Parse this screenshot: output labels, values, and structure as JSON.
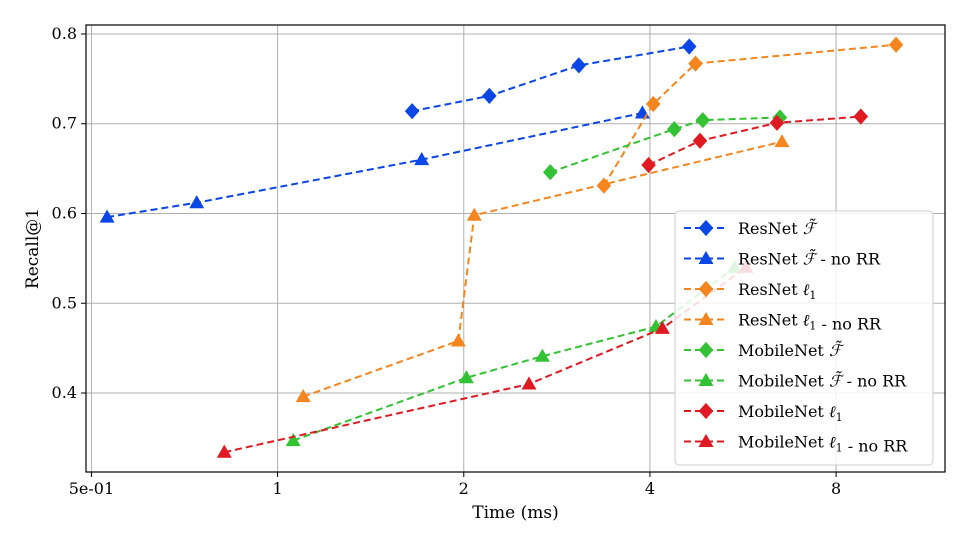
{
  "chart_data": {
    "type": "line",
    "xlabel": "Time (ms)",
    "ylabel": "Recall@1",
    "xscale": "log2",
    "xlim": [
      0.49,
      12.0
    ],
    "ylim": [
      0.312,
      0.81
    ],
    "grid": true,
    "legend_position": "lower-right",
    "x_ticks": [
      {
        "value": 0.5,
        "label": "5e-01"
      },
      {
        "value": 1,
        "label": "1"
      },
      {
        "value": 2,
        "label": "2"
      },
      {
        "value": 4,
        "label": "4"
      },
      {
        "value": 8,
        "label": "8"
      }
    ],
    "y_ticks": [
      {
        "value": 0.4,
        "label": "0.4"
      },
      {
        "value": 0.5,
        "label": "0.5"
      },
      {
        "value": 0.6,
        "label": "0.6"
      },
      {
        "value": 0.7,
        "label": "0.7"
      },
      {
        "value": 0.8,
        "label": "0.8"
      }
    ],
    "series": [
      {
        "name": "ResNet F~",
        "label_main": "ResNet",
        "label_symbol": "F",
        "label_suffix": "",
        "color": "#0b46e6",
        "marker": "diamond",
        "x": [
          1.65,
          2.2,
          3.07,
          4.63
        ],
        "y": [
          0.714,
          0.731,
          0.765,
          0.786
        ]
      },
      {
        "name": "ResNet F~ - no RR",
        "label_main": "ResNet",
        "label_symbol": "F",
        "label_suffix": "- no RR",
        "color": "#0b46e6",
        "marker": "triangle",
        "x": [
          0.53,
          0.74,
          1.71,
          3.89
        ],
        "y": [
          0.596,
          0.612,
          0.66,
          0.712
        ]
      },
      {
        "name": "ResNet l1",
        "label_main": "ResNet",
        "label_symbol": "l1",
        "label_suffix": "",
        "color": "#f5861f",
        "marker": "diamond",
        "x": [
          3.37,
          4.05,
          4.74,
          10.0
        ],
        "y": [
          0.631,
          0.722,
          0.767,
          0.788
        ]
      },
      {
        "name": "ResNet l1 - no RR",
        "label_main": "ResNet",
        "label_symbol": "l1",
        "label_suffix": "- no RR",
        "color": "#f5861f",
        "marker": "triangle",
        "x": [
          1.1,
          1.96,
          2.08,
          6.54
        ],
        "y": [
          0.396,
          0.458,
          0.598,
          0.68
        ]
      },
      {
        "name": "MobileNet F~",
        "label_main": "MobileNet",
        "label_symbol": "F",
        "label_suffix": "",
        "color": "#33c233",
        "marker": "diamond",
        "x": [
          2.76,
          4.38,
          4.87,
          6.49
        ],
        "y": [
          0.646,
          0.694,
          0.704,
          0.707
        ]
      },
      {
        "name": "MobileNet F~ - no RR",
        "label_main": "MobileNet",
        "label_symbol": "F",
        "label_suffix": "- no RR",
        "color": "#33c233",
        "marker": "triangle",
        "x": [
          1.06,
          2.02,
          2.68,
          4.09,
          5.48
        ],
        "y": [
          0.347,
          0.417,
          0.441,
          0.474,
          0.54
        ]
      },
      {
        "name": "MobileNet l1",
        "label_main": "MobileNet",
        "label_symbol": "l1",
        "label_suffix": "",
        "color": "#e01a22",
        "marker": "diamond",
        "x": [
          3.98,
          4.82,
          6.42,
          8.77
        ],
        "y": [
          0.654,
          0.681,
          0.701,
          0.708
        ]
      },
      {
        "name": "MobileNet l1 - no RR",
        "label_main": "MobileNet",
        "label_symbol": "l1",
        "label_suffix": "- no RR",
        "color": "#e01a22",
        "marker": "triangle",
        "x": [
          0.82,
          2.55,
          4.19,
          5.72
        ],
        "y": [
          0.334,
          0.41,
          0.472,
          0.54
        ]
      }
    ]
  }
}
